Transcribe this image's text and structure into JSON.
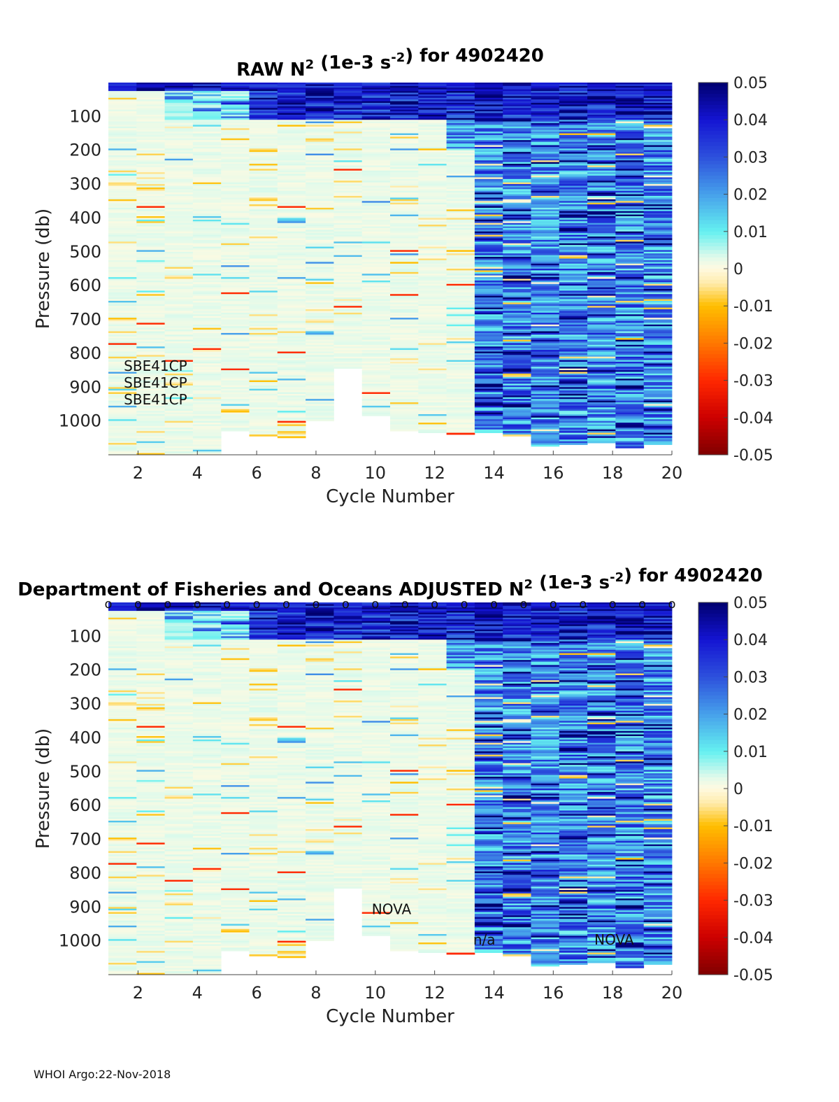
{
  "footer": "WHOI Argo:22-Nov-2018",
  "chart_data": [
    {
      "type": "heatmap",
      "title_prefix": "RAW N",
      "title_sup1": "2",
      "title_mid": " (1e-3 s",
      "title_sup2": "-2",
      "title_suffix": ") for 4902420",
      "xlabel": "Cycle Number",
      "ylabel": "Pressure (db)",
      "xlim": [
        1,
        20
      ],
      "ylim": [
        0,
        1100
      ],
      "xticks": [
        2,
        4,
        6,
        8,
        10,
        12,
        14,
        16,
        18,
        20
      ],
      "yticks": [
        100,
        200,
        300,
        400,
        500,
        600,
        700,
        800,
        900,
        1000
      ],
      "colorbar": {
        "min": -0.05,
        "max": 0.05,
        "ticks": [
          "0.05",
          "0.04",
          "0.03",
          "0.02",
          "0.01",
          "0",
          "-0.01",
          "-0.02",
          "-0.03",
          "-0.04",
          "-0.05"
        ]
      },
      "cycles": [
        1,
        2,
        3,
        4,
        5,
        6,
        7,
        8,
        9,
        10,
        11,
        12,
        13,
        14,
        15,
        16,
        17,
        18,
        19,
        20
      ],
      "max_pressure": [
        1100,
        1100,
        1100,
        1100,
        1030,
        1045,
        1048,
        1000,
        845,
        985,
        1030,
        1035,
        1040,
        1035,
        1045,
        1075,
        1070,
        1065,
        1080,
        1070
      ],
      "annotations": [
        {
          "text": "SBE41CP",
          "cycle": 2.0,
          "pressure": 835
        },
        {
          "text": "SBE41CP",
          "cycle": 2.0,
          "pressure": 885
        },
        {
          "text": "SBE41CP",
          "cycle": 2.0,
          "pressure": 935
        }
      ],
      "markers": []
    },
    {
      "type": "heatmap",
      "title_prefix": "Department of Fisheries and Oceans  ADJUSTED N",
      "title_sup1": "2",
      "title_mid": " (1e-3 s",
      "title_sup2": "-2",
      "title_suffix": ") for 4902420",
      "xlabel": "Cycle Number",
      "ylabel": "Pressure (db)",
      "xlim": [
        1,
        20
      ],
      "ylim": [
        0,
        1100
      ],
      "xticks": [
        2,
        4,
        6,
        8,
        10,
        12,
        14,
        16,
        18,
        20
      ],
      "yticks": [
        100,
        200,
        300,
        400,
        500,
        600,
        700,
        800,
        900,
        1000
      ],
      "colorbar": {
        "min": -0.05,
        "max": 0.05,
        "ticks": [
          "0.05",
          "0.04",
          "0.03",
          "0.02",
          "0.01",
          "0",
          "-0.01",
          "-0.02",
          "-0.03",
          "-0.04",
          "-0.05"
        ]
      },
      "cycles": [
        1,
        2,
        3,
        4,
        5,
        6,
        7,
        8,
        9,
        10,
        11,
        12,
        13,
        14,
        15,
        16,
        17,
        18,
        19,
        20
      ],
      "max_pressure": [
        1100,
        1100,
        1100,
        1100,
        1030,
        1045,
        1048,
        1000,
        845,
        985,
        1030,
        1035,
        1040,
        1035,
        1045,
        1075,
        1070,
        1065,
        1080,
        1070
      ],
      "annotations": [
        {
          "text": "NOVA",
          "cycle": 10.8,
          "pressure": 905
        },
        {
          "text": "n/a",
          "cycle": 14.4,
          "pressure": 995
        },
        {
          "text": "NOVA",
          "cycle": 18.7,
          "pressure": 995
        }
      ],
      "markers": [
        {
          "text": "o",
          "cycles": [
            1,
            2,
            3,
            4,
            5,
            6,
            7,
            8,
            9,
            10,
            11,
            12,
            13,
            14,
            15,
            16,
            17,
            18,
            19,
            20
          ],
          "pressure": 0
        }
      ]
    }
  ]
}
